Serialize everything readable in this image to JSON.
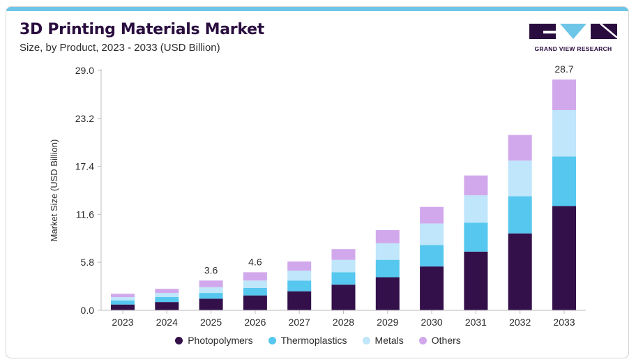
{
  "header": {
    "title": "3D Printing Materials Market",
    "subtitle": "Size, by Product, 2023 - 2033 (USD Billion)"
  },
  "logo": {
    "text": "GRAND VIEW RESEARCH",
    "colors": {
      "dark": "#2a0d3f",
      "accent": "#6dc6e7"
    }
  },
  "colors": {
    "photopolymers": "#33104a",
    "thermoplastics": "#56c7ef",
    "metals": "#bfe6fa",
    "others": "#d2a8ec"
  },
  "chart_data": {
    "type": "bar",
    "stacked": true,
    "title": "3D Printing Materials Market",
    "subtitle": "Size, by Product, 2023 - 2033 (USD Billion)",
    "xlabel": "",
    "ylabel": "Market Size (USD Billion)",
    "ylim": [
      0,
      29
    ],
    "yticks": [
      "0.0",
      "5.8",
      "11.6",
      "17.4",
      "23.2",
      "29.0"
    ],
    "categories": [
      "2023",
      "2024",
      "2025",
      "2026",
      "2027",
      "2028",
      "2029",
      "2030",
      "2031",
      "2032",
      "2033"
    ],
    "series": [
      {
        "name": "Photopolymers",
        "color": "#33104a",
        "values": [
          0.7,
          1.0,
          1.4,
          1.8,
          2.3,
          3.1,
          4.0,
          5.3,
          7.1,
          9.3,
          12.6
        ]
      },
      {
        "name": "Thermoplastics",
        "color": "#56c7ef",
        "values": [
          0.5,
          0.6,
          0.7,
          0.9,
          1.3,
          1.5,
          2.1,
          2.6,
          3.5,
          4.5,
          6.0
        ]
      },
      {
        "name": "Metals",
        "color": "#bfe6fa",
        "values": [
          0.4,
          0.5,
          0.7,
          0.9,
          1.2,
          1.5,
          2.0,
          2.6,
          3.3,
          4.3,
          5.6
        ]
      },
      {
        "name": "Others",
        "color": "#d2a8ec",
        "values": [
          0.4,
          0.5,
          0.8,
          1.0,
          1.1,
          1.3,
          1.6,
          2.0,
          2.4,
          3.1,
          3.7
        ]
      }
    ],
    "data_labels": [
      {
        "category": "2025",
        "text": "3.6"
      },
      {
        "category": "2026",
        "text": "4.6"
      },
      {
        "category": "2033",
        "text": "28.7"
      }
    ],
    "grid": false,
    "legend": "bottom-center"
  }
}
